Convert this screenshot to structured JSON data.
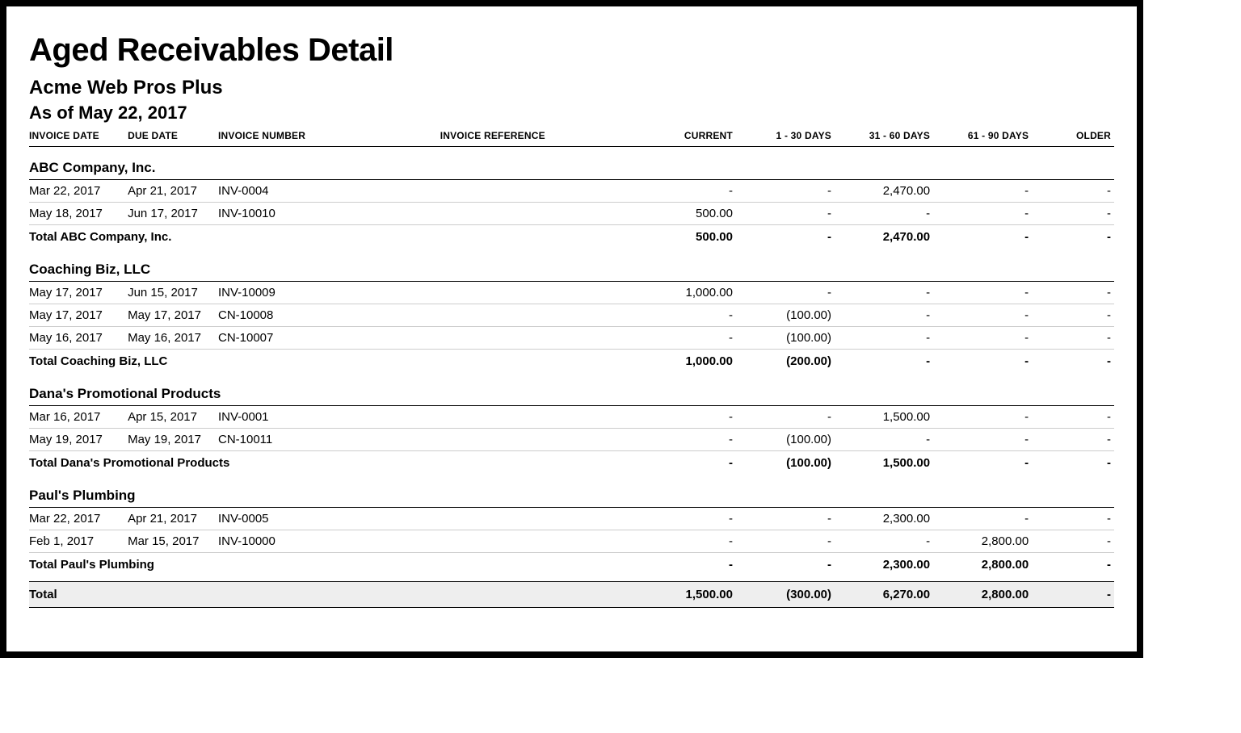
{
  "report_title": "Aged Receivables Detail",
  "company_name": "Acme Web Pros Plus",
  "as_of": "As of May 22, 2017",
  "columns": [
    "INVOICE DATE",
    "DUE DATE",
    "INVOICE NUMBER",
    "INVOICE REFERENCE",
    "CURRENT",
    "1 - 30 DAYS",
    "31 - 60 DAYS",
    "61 - 90 DAYS",
    "OLDER"
  ],
  "sections": [
    {
      "name": "ABC Company, Inc.",
      "rows": [
        {
          "invoice_date": "Mar 22, 2017",
          "due_date": "Apr 21, 2017",
          "invoice_number": "INV-0004",
          "invoice_reference": "",
          "current": "-",
          "d1_30": "-",
          "d31_60": "2,470.00",
          "d61_90": "-",
          "older": "-"
        },
        {
          "invoice_date": "May 18, 2017",
          "due_date": "Jun 17, 2017",
          "invoice_number": "INV-10010",
          "invoice_reference": "",
          "current": "500.00",
          "d1_30": "-",
          "d31_60": "-",
          "d61_90": "-",
          "older": "-"
        }
      ],
      "total": {
        "label": "Total ABC Company, Inc.",
        "current": "500.00",
        "d1_30": "-",
        "d31_60": "2,470.00",
        "d61_90": "-",
        "older": "-"
      }
    },
    {
      "name": "Coaching Biz, LLC",
      "rows": [
        {
          "invoice_date": "May 17, 2017",
          "due_date": "Jun 15, 2017",
          "invoice_number": "INV-10009",
          "invoice_reference": "",
          "current": "1,000.00",
          "d1_30": "-",
          "d31_60": "-",
          "d61_90": "-",
          "older": "-"
        },
        {
          "invoice_date": "May 17, 2017",
          "due_date": "May 17, 2017",
          "invoice_number": "CN-10008",
          "invoice_reference": "",
          "current": "-",
          "d1_30": "(100.00)",
          "d31_60": "-",
          "d61_90": "-",
          "older": "-"
        },
        {
          "invoice_date": "May 16, 2017",
          "due_date": "May 16, 2017",
          "invoice_number": "CN-10007",
          "invoice_reference": "",
          "current": "-",
          "d1_30": "(100.00)",
          "d31_60": "-",
          "d61_90": "-",
          "older": "-"
        }
      ],
      "total": {
        "label": "Total Coaching Biz, LLC",
        "current": "1,000.00",
        "d1_30": "(200.00)",
        "d31_60": "-",
        "d61_90": "-",
        "older": "-"
      }
    },
    {
      "name": "Dana's Promotional Products",
      "rows": [
        {
          "invoice_date": "Mar 16, 2017",
          "due_date": "Apr 15, 2017",
          "invoice_number": "INV-0001",
          "invoice_reference": "",
          "current": "-",
          "d1_30": "-",
          "d31_60": "1,500.00",
          "d61_90": "-",
          "older": "-"
        },
        {
          "invoice_date": "May 19, 2017",
          "due_date": "May 19, 2017",
          "invoice_number": "CN-10011",
          "invoice_reference": "",
          "current": "-",
          "d1_30": "(100.00)",
          "d31_60": "-",
          "d61_90": "-",
          "older": "-"
        }
      ],
      "total": {
        "label": "Total Dana's Promotional Products",
        "current": "-",
        "d1_30": "(100.00)",
        "d31_60": "1,500.00",
        "d61_90": "-",
        "older": "-"
      }
    },
    {
      "name": "Paul's Plumbing",
      "rows": [
        {
          "invoice_date": "Mar 22, 2017",
          "due_date": "Apr 21, 2017",
          "invoice_number": "INV-0005",
          "invoice_reference": "",
          "current": "-",
          "d1_30": "-",
          "d31_60": "2,300.00",
          "d61_90": "-",
          "older": "-"
        },
        {
          "invoice_date": "Feb 1, 2017",
          "due_date": "Mar 15, 2017",
          "invoice_number": "INV-10000",
          "invoice_reference": "",
          "current": "-",
          "d1_30": "-",
          "d31_60": "-",
          "d61_90": "2,800.00",
          "older": "-"
        }
      ],
      "total": {
        "label": "Total Paul's Plumbing",
        "current": "-",
        "d1_30": "-",
        "d31_60": "2,300.00",
        "d61_90": "2,800.00",
        "older": "-"
      }
    }
  ],
  "grand_total": {
    "label": "Total",
    "current": "1,500.00",
    "d1_30": "(300.00)",
    "d31_60": "6,270.00",
    "d61_90": "2,800.00",
    "older": "-"
  }
}
